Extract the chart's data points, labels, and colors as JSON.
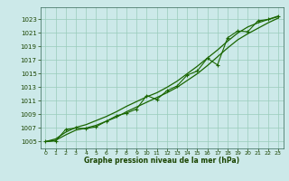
{
  "xlabel": "Graphe pression niveau de la mer (hPa)",
  "ylim": [
    1004.0,
    1024.8
  ],
  "xlim": [
    -0.5,
    23.5
  ],
  "yticks": [
    1005,
    1007,
    1009,
    1011,
    1013,
    1015,
    1017,
    1019,
    1021,
    1023
  ],
  "xticks": [
    0,
    1,
    2,
    3,
    4,
    5,
    6,
    7,
    8,
    9,
    10,
    11,
    12,
    13,
    14,
    15,
    16,
    17,
    18,
    19,
    20,
    21,
    22,
    23
  ],
  "bg_color": "#cce9e9",
  "grid_color": "#99ccbb",
  "line_color": "#1a6600",
  "hours": [
    0,
    1,
    2,
    3,
    4,
    5,
    6,
    7,
    8,
    9,
    10,
    11,
    12,
    13,
    14,
    15,
    16,
    17,
    18,
    19,
    20,
    21,
    22,
    23
  ],
  "pressure_measured": [
    1005.0,
    1005.1,
    1006.8,
    1007.0,
    1006.9,
    1007.2,
    1008.0,
    1008.8,
    1009.2,
    1009.8,
    1011.8,
    1011.2,
    1012.5,
    1013.2,
    1014.8,
    1015.4,
    1017.3,
    1016.3,
    1020.3,
    1021.3,
    1021.2,
    1022.8,
    1023.0,
    1023.4
  ],
  "pressure_upper": [
    1005.0,
    1005.4,
    1006.4,
    1007.1,
    1007.5,
    1008.1,
    1008.7,
    1009.4,
    1010.2,
    1010.9,
    1011.6,
    1012.2,
    1013.0,
    1013.9,
    1015.0,
    1016.1,
    1017.3,
    1018.5,
    1019.8,
    1021.0,
    1021.9,
    1022.5,
    1023.0,
    1023.5
  ],
  "pressure_lower": [
    1005.0,
    1005.2,
    1006.0,
    1006.7,
    1007.0,
    1007.4,
    1008.0,
    1008.6,
    1009.4,
    1010.1,
    1010.8,
    1011.5,
    1012.2,
    1013.0,
    1014.0,
    1015.0,
    1016.2,
    1017.5,
    1018.8,
    1020.0,
    1020.9,
    1021.7,
    1022.5,
    1023.2
  ]
}
